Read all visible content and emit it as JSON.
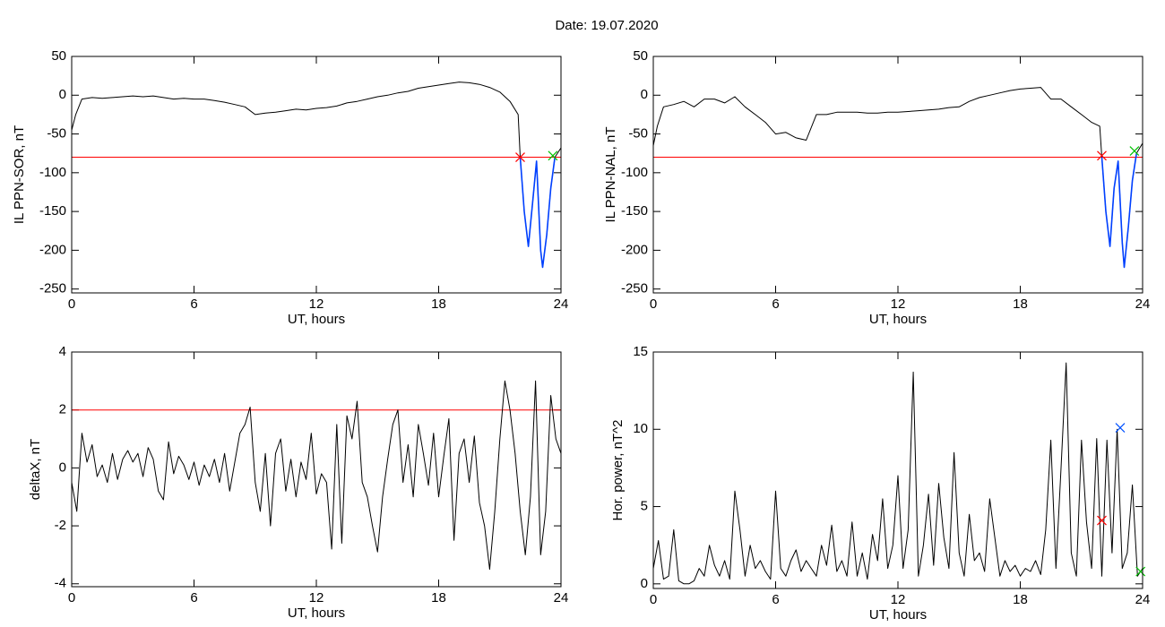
{
  "title": "Date:  19.07.2020",
  "chart_data": [
    {
      "type": "line",
      "xlabel": "UT, hours",
      "ylabel": "IL PPN-SOR, nT",
      "xlim": [
        0,
        24
      ],
      "xticks": [
        0,
        6,
        12,
        18,
        24
      ],
      "ylim": [
        -255,
        50
      ],
      "yticks": [
        50,
        0,
        -50,
        -100,
        -150,
        -200,
        -250
      ],
      "threshold": {
        "value": -80,
        "color": "#ff0000"
      },
      "series": [
        {
          "color": "#000000",
          "x": [
            0,
            0.2,
            0.5,
            1,
            1.5,
            2,
            2.5,
            3,
            3.5,
            4,
            4.5,
            5,
            5.5,
            6,
            6.5,
            7,
            7.5,
            8,
            8.5,
            9,
            9.5,
            10,
            10.5,
            11,
            11.5,
            12,
            12.5,
            13,
            13.5,
            14,
            14.5,
            15,
            15.5,
            16,
            16.5,
            17,
            17.5,
            18,
            18.5,
            19,
            19.5,
            20,
            20.5,
            21,
            21.5,
            21.9,
            22,
            22.2,
            22.4,
            22.6,
            22.8,
            23,
            23.1,
            23.3,
            23.5,
            23.7,
            24
          ],
          "values": [
            -45,
            -25,
            -5,
            -3,
            -4,
            -3,
            -2,
            -1,
            -2,
            -1,
            -3,
            -5,
            -4,
            -5,
            -5,
            -7,
            -9,
            -12,
            -15,
            -25,
            -23,
            -22,
            -20,
            -18,
            -19,
            -17,
            -16,
            -14,
            -10,
            -8,
            -5,
            -2,
            0,
            3,
            5,
            9,
            11,
            13,
            15,
            17,
            16,
            14,
            10,
            4,
            -8,
            -25,
            -80,
            -150,
            -195,
            -140,
            -85,
            -200,
            -222,
            -180,
            -120,
            -80,
            -68
          ]
        },
        {
          "color": "#0040ff",
          "x": [
            22,
            22.2,
            22.4,
            22.6,
            22.8,
            23,
            23.1,
            23.3,
            23.5,
            23.7
          ],
          "values": [
            -80,
            -150,
            -195,
            -140,
            -85,
            -200,
            -222,
            -180,
            -120,
            -80
          ]
        }
      ],
      "markers": [
        {
          "x": 22,
          "y": -80,
          "color": "#ff0000"
        },
        {
          "x": 23.6,
          "y": -78,
          "color": "#00c000"
        }
      ]
    },
    {
      "type": "line",
      "xlabel": "UT, hours",
      "ylabel": "IL PPN-NAL, nT",
      "xlim": [
        0,
        24
      ],
      "xticks": [
        0,
        6,
        12,
        18,
        24
      ],
      "ylim": [
        -255,
        50
      ],
      "yticks": [
        50,
        0,
        -50,
        -100,
        -150,
        -200,
        -250
      ],
      "threshold": {
        "value": -80,
        "color": "#ff0000"
      },
      "series": [
        {
          "color": "#000000",
          "x": [
            0,
            0.2,
            0.5,
            1,
            1.5,
            2,
            2.5,
            3,
            3.5,
            4,
            4.5,
            5,
            5.5,
            6,
            6.5,
            7,
            7.5,
            8,
            8.5,
            9,
            9.5,
            10,
            10.5,
            11,
            11.5,
            12,
            12.5,
            13,
            13.5,
            14,
            14.5,
            15,
            15.5,
            16,
            16.5,
            17,
            17.5,
            18,
            18.5,
            19,
            19.5,
            20,
            20.5,
            21,
            21.5,
            21.9,
            22,
            22.2,
            22.4,
            22.6,
            22.8,
            23,
            23.1,
            23.3,
            23.5,
            23.7,
            24
          ],
          "values": [
            -65,
            -40,
            -15,
            -12,
            -8,
            -15,
            -5,
            -5,
            -10,
            -2,
            -15,
            -25,
            -35,
            -50,
            -48,
            -55,
            -58,
            -25,
            -25,
            -22,
            -22,
            -22,
            -23,
            -23,
            -22,
            -22,
            -21,
            -20,
            -19,
            -18,
            -16,
            -15,
            -8,
            -3,
            0,
            3,
            6,
            8,
            9,
            10,
            -5,
            -5,
            -15,
            -25,
            -35,
            -40,
            -80,
            -150,
            -195,
            -120,
            -85,
            -190,
            -222,
            -170,
            -110,
            -75,
            -62
          ]
        },
        {
          "color": "#0040ff",
          "x": [
            22,
            22.2,
            22.4,
            22.6,
            22.8,
            23,
            23.1,
            23.3,
            23.5,
            23.7
          ],
          "values": [
            -80,
            -150,
            -195,
            -120,
            -85,
            -190,
            -222,
            -170,
            -110,
            -75
          ]
        }
      ],
      "markers": [
        {
          "x": 22,
          "y": -78,
          "color": "#ff0000"
        },
        {
          "x": 23.6,
          "y": -72,
          "color": "#00c000"
        }
      ]
    },
    {
      "type": "line",
      "xlabel": "UT, hours",
      "ylabel": "deltaX, nT",
      "xlim": [
        0,
        24
      ],
      "xticks": [
        0,
        6,
        12,
        18,
        24
      ],
      "ylim": [
        -4.1,
        4
      ],
      "yticks": [
        4,
        2,
        0,
        -2,
        -4
      ],
      "threshold": {
        "value": 2,
        "color": "#ff0000"
      },
      "series": [
        {
          "color": "#000000",
          "x": [
            0,
            0.25,
            0.5,
            0.75,
            1,
            1.25,
            1.5,
            1.75,
            2,
            2.25,
            2.5,
            2.75,
            3,
            3.25,
            3.5,
            3.75,
            4,
            4.25,
            4.5,
            4.75,
            5,
            5.25,
            5.5,
            5.75,
            6,
            6.25,
            6.5,
            6.75,
            7,
            7.25,
            7.5,
            7.75,
            8,
            8.25,
            8.5,
            8.75,
            9,
            9.25,
            9.5,
            9.75,
            10,
            10.25,
            10.5,
            10.75,
            11,
            11.25,
            11.5,
            11.75,
            12,
            12.25,
            12.5,
            12.75,
            13,
            13.25,
            13.5,
            13.75,
            14,
            14.25,
            14.5,
            14.75,
            15,
            15.25,
            15.5,
            15.75,
            16,
            16.25,
            16.5,
            16.75,
            17,
            17.25,
            17.5,
            17.75,
            18,
            18.25,
            18.5,
            18.75,
            19,
            19.25,
            19.5,
            19.75,
            20,
            20.25,
            20.5,
            20.75,
            21,
            21.25,
            21.5,
            21.75,
            22,
            22.25,
            22.5,
            22.75,
            23,
            23.25,
            23.5,
            23.75,
            24
          ],
          "values": [
            -0.5,
            -1.5,
            1.2,
            0.2,
            0.8,
            -0.3,
            0.1,
            -0.5,
            0.5,
            -0.4,
            0.3,
            0.6,
            0.2,
            0.5,
            -0.3,
            0.7,
            0.3,
            -0.8,
            -1.1,
            0.9,
            -0.2,
            0.4,
            0.1,
            -0.4,
            0.2,
            -0.6,
            0.1,
            -0.3,
            0.3,
            -0.5,
            0.5,
            -0.8,
            0.2,
            1.2,
            1.5,
            2.1,
            -0.5,
            -1.5,
            0.5,
            -2.0,
            0.5,
            1.0,
            -0.8,
            0.3,
            -1.0,
            0.2,
            -0.4,
            1.2,
            -0.9,
            -0.2,
            -0.5,
            -2.8,
            1.5,
            -2.6,
            1.8,
            1.0,
            2.3,
            -0.5,
            -1.0,
            -2.0,
            -2.9,
            -1.0,
            0.3,
            1.5,
            2.0,
            -0.5,
            0.8,
            -1.0,
            1.5,
            0.5,
            -0.6,
            1.2,
            -1.0,
            0.4,
            1.7,
            -2.5,
            0.5,
            1.0,
            -0.5,
            1.1,
            -1.2,
            -2.0,
            -3.5,
            -1.5,
            1.0,
            3.0,
            2.0,
            0.5,
            -1.5,
            -3.0,
            -1.0,
            3.0,
            -3.0,
            -1.5,
            2.5,
            1.0,
            0.5
          ]
        }
      ]
    },
    {
      "type": "line",
      "xlabel": "UT, hours",
      "ylabel": "Hor. power, nT^2",
      "xlim": [
        0,
        24
      ],
      "xticks": [
        0,
        6,
        12,
        18,
        24
      ],
      "ylim": [
        -0.3,
        15
      ],
      "yticks": [
        0,
        5,
        10,
        15
      ],
      "series": [
        {
          "color": "#000000",
          "x": [
            0,
            0.25,
            0.5,
            0.75,
            1,
            1.25,
            1.5,
            1.75,
            2,
            2.25,
            2.5,
            2.75,
            3,
            3.25,
            3.5,
            3.75,
            4,
            4.25,
            4.5,
            4.75,
            5,
            5.25,
            5.5,
            5.75,
            6,
            6.25,
            6.5,
            6.75,
            7,
            7.25,
            7.5,
            7.75,
            8,
            8.25,
            8.5,
            8.75,
            9,
            9.25,
            9.5,
            9.75,
            10,
            10.25,
            10.5,
            10.75,
            11,
            11.25,
            11.5,
            11.75,
            12,
            12.25,
            12.5,
            12.75,
            13,
            13.25,
            13.5,
            13.75,
            14,
            14.25,
            14.5,
            14.75,
            15,
            15.25,
            15.5,
            15.75,
            16,
            16.25,
            16.5,
            16.75,
            17,
            17.25,
            17.5,
            17.75,
            18,
            18.25,
            18.5,
            18.75,
            19,
            19.25,
            19.5,
            19.75,
            20,
            20.25,
            20.5,
            20.75,
            21,
            21.25,
            21.5,
            21.75,
            22,
            22.25,
            22.5,
            22.75,
            23,
            23.25,
            23.5,
            23.75,
            24
          ],
          "values": [
            1,
            2.8,
            0.3,
            0.5,
            3.5,
            0.2,
            0,
            0,
            0.2,
            1.0,
            0.5,
            2.5,
            1.2,
            0.5,
            1.5,
            0.3,
            6,
            3.5,
            0.5,
            2.5,
            1.0,
            1.5,
            0.8,
            0.3,
            6.0,
            1.0,
            0.5,
            1.5,
            2.2,
            0.8,
            1.5,
            1.0,
            0.5,
            2.5,
            1.2,
            3.8,
            0.8,
            1.5,
            0.5,
            4.0,
            0.5,
            2.0,
            0.3,
            3.2,
            1.5,
            5.5,
            1.0,
            2.5,
            7.0,
            1.0,
            3.5,
            13.7,
            0.5,
            2.5,
            5.8,
            1.2,
            6.5,
            3.0,
            1.0,
            8.5,
            2.0,
            0.5,
            4.5,
            1.5,
            2.0,
            0.8,
            5.5,
            3.0,
            0.5,
            1.5,
            0.8,
            1.2,
            0.5,
            1.0,
            0.8,
            1.5,
            0.6,
            3.5,
            9.3,
            1.0,
            7.5,
            14.3,
            2.0,
            0.5,
            9.3,
            4.0,
            1.0,
            9.4,
            0.5,
            9.3,
            2.0,
            10.0,
            1.0,
            2.0,
            6.4,
            0.5,
            1.0
          ]
        }
      ],
      "markers": [
        {
          "x": 22,
          "y": 4.1,
          "color": "#ff0000"
        },
        {
          "x": 22.9,
          "y": 10.1,
          "color": "#0050ff"
        },
        {
          "x": 23.9,
          "y": 0.8,
          "color": "#00c000"
        }
      ]
    }
  ]
}
